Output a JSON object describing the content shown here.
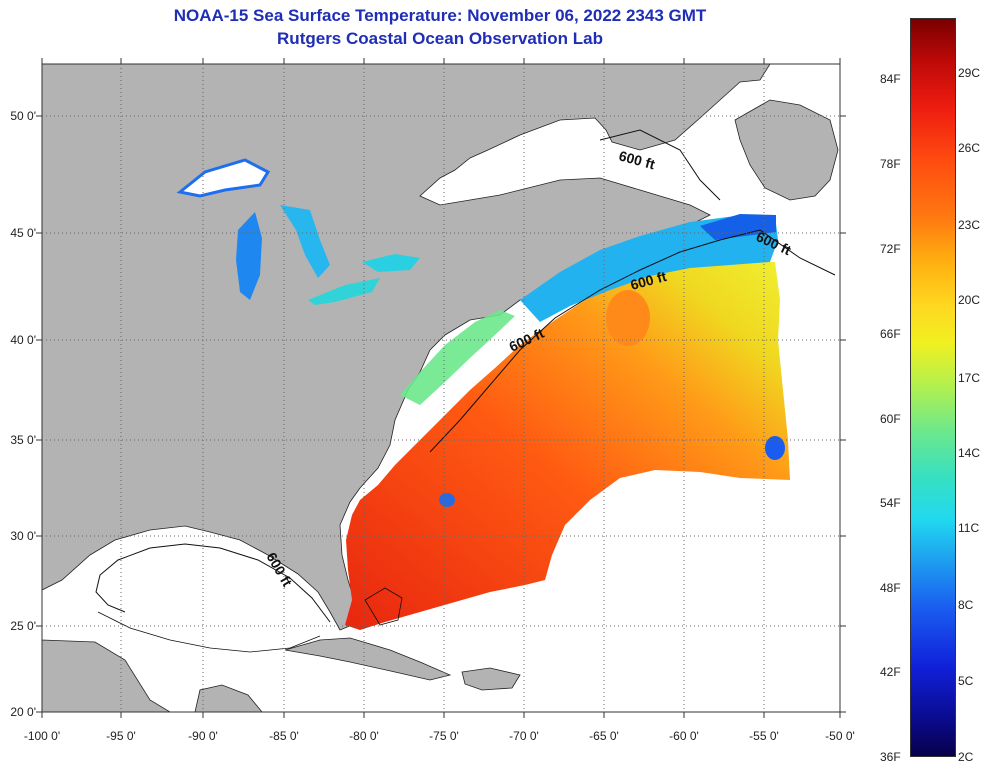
{
  "title_line1": "NOAA-15 Sea Surface Temperature:  November 06, 2022 2343 GMT",
  "title_line2": "Rutgers Coastal Ocean Observation Lab",
  "map": {
    "lon_labels": [
      "-100 0'",
      "-95 0'",
      "-90 0'",
      "-85 0'",
      "-80 0'",
      "-75 0'",
      "-70 0'",
      "-65 0'",
      "-60 0'",
      "-55 0'",
      "-50 0'"
    ],
    "lat_labels": [
      "50 0'",
      "45 0'",
      "40 0'",
      "35 0'",
      "30 0'",
      "25 0'",
      "20 0'"
    ],
    "contour_label": "600 ft",
    "colors": {
      "land": "#b3b3b3",
      "ocean_no_data": "#ffffff",
      "grid": "#666666"
    }
  },
  "colorbar": {
    "fahrenheit_labels": [
      "84F",
      "78F",
      "72F",
      "66F",
      "60F",
      "54F",
      "48F",
      "42F",
      "36F"
    ],
    "celsius_labels": [
      "29C",
      "26C",
      "23C",
      "20C",
      "17C",
      "14C",
      "11C",
      "8C",
      "5C",
      "2C"
    ]
  }
}
